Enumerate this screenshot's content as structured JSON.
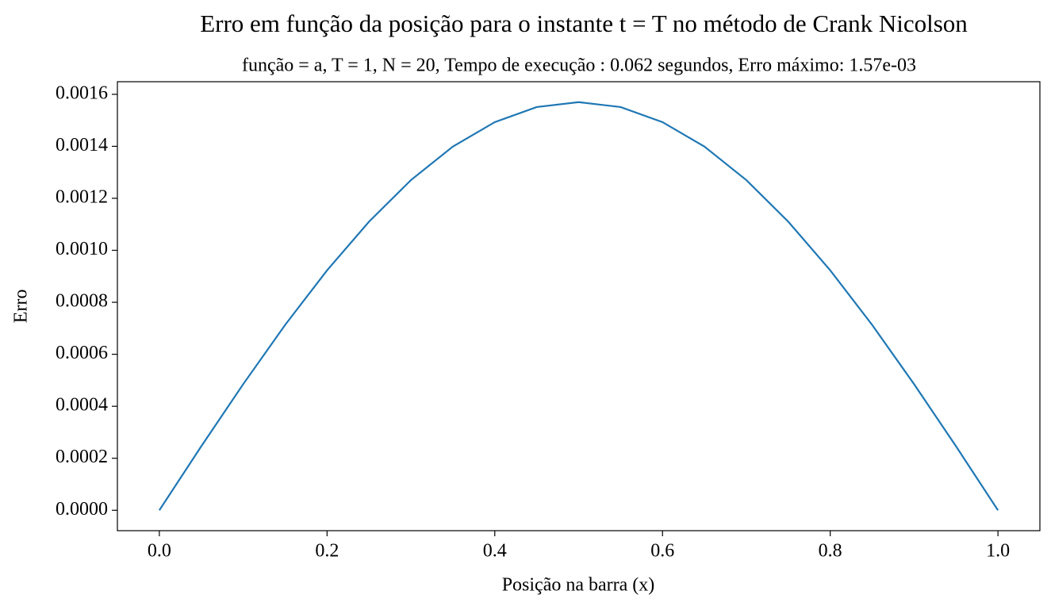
{
  "chart_data": {
    "type": "line",
    "title": "Erro em função da posição para o instante t = T no método de Crank Nicolson",
    "subtitle": "função = a,  T = 1,  N = 20,  Tempo de execução :  0.062 segundos, Erro máximo: 1.57e-03",
    "x_label": "Posição na barra (x)",
    "y_label": "Erro",
    "x": [
      0,
      0.05,
      0.1,
      0.15,
      0.2,
      0.25,
      0.3,
      0.35,
      0.4,
      0.45,
      0.5,
      0.55,
      0.6,
      0.65,
      0.7,
      0.75,
      0.8,
      0.85,
      0.9,
      0.95,
      1
    ],
    "series": [
      {
        "name": "Erro",
        "color": "#1f77b4",
        "values": [
          0,
          0.000246,
          0.000485,
          0.000713,
          0.000923,
          0.00111,
          0.00127,
          0.001399,
          0.001493,
          0.001551,
          0.00157,
          0.001551,
          0.001493,
          0.001399,
          0.00127,
          0.00111,
          0.000923,
          0.000713,
          0.000485,
          0.000246,
          0
        ]
      }
    ],
    "xlim": [
      -0.05,
      1.05
    ],
    "ylim": [
      -7.85e-05,
      0.0016485
    ],
    "xticks": [
      {
        "value": 0,
        "label": "0.0"
      },
      0.2,
      0.4,
      0.6,
      0.8,
      {
        "value": 1,
        "label": "1.0"
      }
    ],
    "yticks": [
      {
        "value": 0,
        "label": "0.0000"
      },
      {
        "value": 0.0002,
        "label": "0.0002"
      },
      {
        "value": 0.0004,
        "label": "0.0004"
      },
      {
        "value": 0.0006,
        "label": "0.0006"
      },
      {
        "value": 0.0008,
        "label": "0.0008"
      },
      {
        "value": 0.001,
        "label": "0.0010"
      },
      {
        "value": 0.0012,
        "label": "0.0012"
      },
      {
        "value": 0.0014,
        "label": "0.0014"
      },
      {
        "value": 0.0016,
        "label": "0.0016"
      }
    ],
    "grid": false
  }
}
